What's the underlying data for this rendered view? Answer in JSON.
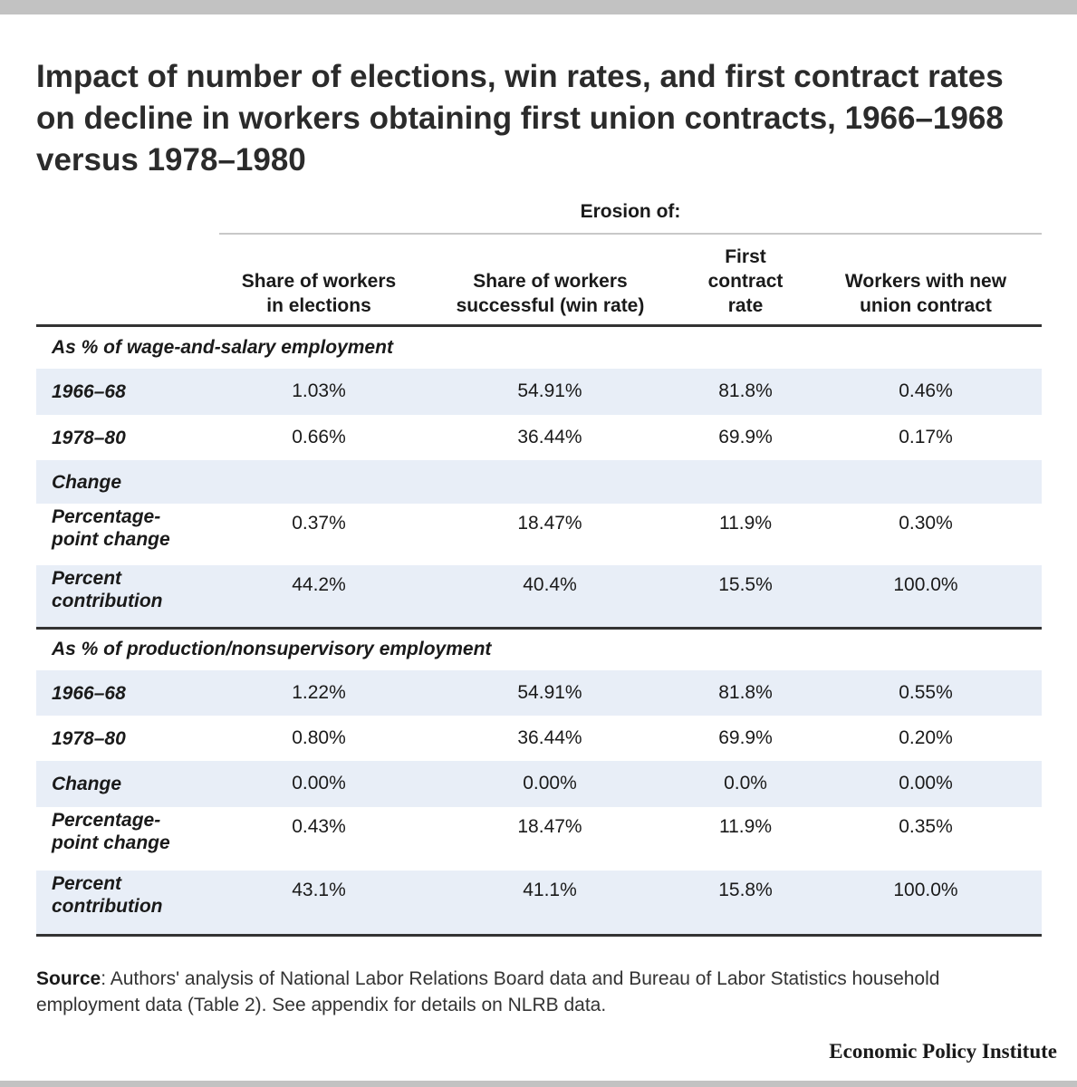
{
  "chart_data": {
    "type": "table",
    "title": "Impact of number of elections, win rates, and first contract rates on decline in workers obtaining first union contracts, 1966–1968 versus 1978–1980",
    "header_group": "Erosion of:",
    "columns": [
      "Share of workers in elections",
      "Share of workers successful (win rate)",
      "First contract rate",
      "Workers with new union contract"
    ],
    "sections": [
      {
        "name": "As % of wage-and-salary employment",
        "rows": [
          {
            "label": "1966–68",
            "values": [
              "1.03%",
              "54.91%",
              "81.8%",
              "0.46%"
            ]
          },
          {
            "label": "1978–80",
            "values": [
              "0.66%",
              "36.44%",
              "69.9%",
              "0.17%"
            ]
          },
          {
            "label": "Change",
            "values": [
              "",
              "",
              "",
              ""
            ]
          },
          {
            "label": "Percentage-point change",
            "values": [
              "0.37%",
              "18.47%",
              "11.9%",
              "0.30%"
            ]
          },
          {
            "label": "Percent contribution",
            "values": [
              "44.2%",
              "40.4%",
              "15.5%",
              "100.0%"
            ]
          }
        ]
      },
      {
        "name": "As % of production/nonsupervisory employment",
        "rows": [
          {
            "label": "1966–68",
            "values": [
              "1.22%",
              "54.91%",
              "81.8%",
              "0.55%"
            ]
          },
          {
            "label": "1978–80",
            "values": [
              "0.80%",
              "36.44%",
              "69.9%",
              "0.20%"
            ]
          },
          {
            "label": "Change",
            "values": [
              "0.00%",
              "0.00%",
              "0.0%",
              "0.00%"
            ]
          },
          {
            "label": "Percentage-point change",
            "values": [
              "0.43%",
              "18.47%",
              "11.9%",
              "0.35%"
            ]
          },
          {
            "label": "Percent contribution",
            "values": [
              "43.1%",
              "41.1%",
              "15.8%",
              "100.0%"
            ]
          }
        ]
      }
    ]
  },
  "source": {
    "label": "Source",
    "text": ": Authors' analysis of National Labor Relations Board data and Bureau of Labor Statistics household employment data (Table 2). See appendix for details on NLRB data."
  },
  "brand": "Economic Policy Institute",
  "colors": {
    "row_shade": "#e8eef7",
    "frame_bars": "#c2c2c2",
    "rule": "#333333"
  }
}
